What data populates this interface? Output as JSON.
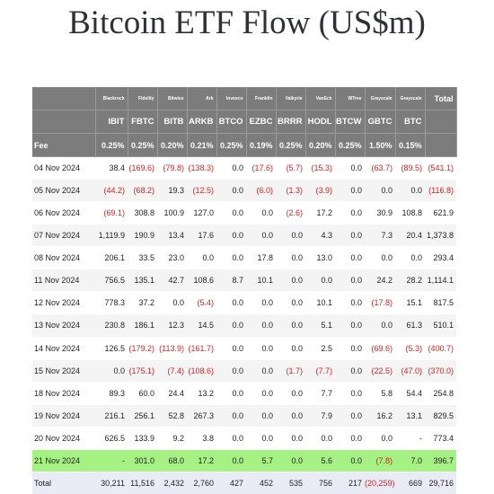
{
  "title": "Bitcoin ETF Flow (US$m)",
  "issuers": [
    "Blackrock",
    "Fidelity",
    "Bitwise",
    "Ark",
    "Invesco",
    "Franklin",
    "Valkyrie",
    "VanEck",
    "WTree",
    "Grayscale",
    "Grayscale"
  ],
  "total_header": "Total",
  "tickers": [
    "IBIT",
    "FBTC",
    "BITB",
    "ARKB",
    "BTCO",
    "EZBC",
    "BRRR",
    "HODL",
    "BTCW",
    "GBTC",
    "BTC"
  ],
  "fee_label": "Fee",
  "fees": [
    "0.25%",
    "0.25%",
    "0.20%",
    "0.21%",
    "0.25%",
    "0.19%",
    "0.25%",
    "0.20%",
    "0.25%",
    "1.50%",
    "0.15%",
    ""
  ],
  "rows": [
    {
      "date": "04 Nov 2024",
      "values": [
        "38.4",
        "(169.6)",
        "(79.8)",
        "(138.3)",
        "0.0",
        "(17.6)",
        "(5.7)",
        "(15.3)",
        "0.0",
        "(63.7)",
        "(89.5)",
        "(541.1)"
      ]
    },
    {
      "date": "05 Nov 2024",
      "values": [
        "(44.2)",
        "(68.2)",
        "19.3",
        "(12.5)",
        "0.0",
        "(6.0)",
        "(1.3)",
        "(3.9)",
        "0.0",
        "0.0",
        "0.0",
        "(116.8)"
      ]
    },
    {
      "date": "06 Nov 2024",
      "values": [
        "(69.1)",
        "308.8",
        "100.9",
        "127.0",
        "0.0",
        "0.0",
        "(2.6)",
        "17.2",
        "0.0",
        "30.9",
        "108.8",
        "621.9"
      ]
    },
    {
      "date": "07 Nov 2024",
      "values": [
        "1,119.9",
        "190.9",
        "13.4",
        "17.6",
        "0.0",
        "0.0",
        "0.0",
        "4.3",
        "0.0",
        "7.3",
        "20.4",
        "1,373.8"
      ]
    },
    {
      "date": "08 Nov 2024",
      "values": [
        "206.1",
        "33.5",
        "23.0",
        "0.0",
        "0.0",
        "17.8",
        "0.0",
        "13.0",
        "0.0",
        "0.0",
        "0.0",
        "293.4"
      ]
    },
    {
      "date": "11 Nov 2024",
      "values": [
        "756.5",
        "135.1",
        "42.7",
        "108.6",
        "8.7",
        "10.1",
        "0.0",
        "0.0",
        "0.0",
        "24.2",
        "28.2",
        "1,114.1"
      ]
    },
    {
      "date": "12 Nov 2024",
      "values": [
        "778.3",
        "37.2",
        "0.0",
        "(5.4)",
        "0.0",
        "0.0",
        "0.0",
        "10.1",
        "0.0",
        "(17.8)",
        "15.1",
        "817.5"
      ]
    },
    {
      "date": "13 Nov 2024",
      "values": [
        "230.8",
        "186.1",
        "12.3",
        "14.5",
        "0.0",
        "0.0",
        "0.0",
        "5.1",
        "0.0",
        "0.0",
        "61.3",
        "510.1"
      ]
    },
    {
      "date": "14 Nov 2024",
      "values": [
        "126.5",
        "(179.2)",
        "(113.9)",
        "(161.7)",
        "0.0",
        "0.0",
        "0.0",
        "2.5",
        "0.0",
        "(69.6)",
        "(5.3)",
        "(400.7)"
      ]
    },
    {
      "date": "15 Nov 2024",
      "values": [
        "0.0",
        "(175.1)",
        "(7.4)",
        "(108.6)",
        "0.0",
        "0.0",
        "(1.7)",
        "(7.7)",
        "0.0",
        "(22.5)",
        "(47.0)",
        "(370.0)"
      ]
    },
    {
      "date": "18 Nov 2024",
      "values": [
        "89.3",
        "60.0",
        "24.4",
        "13.2",
        "0.0",
        "0.0",
        "0.0",
        "7.7",
        "0.0",
        "5.8",
        "54.4",
        "254.8"
      ]
    },
    {
      "date": "19 Nov 2024",
      "values": [
        "216.1",
        "256.1",
        "52.8",
        "267.3",
        "0.0",
        "0.0",
        "0.0",
        "7.9",
        "0.0",
        "16.2",
        "13.1",
        "829.5"
      ]
    },
    {
      "date": "20 Nov 2024",
      "values": [
        "626.5",
        "133.9",
        "9.2",
        "3.8",
        "0.0",
        "0.0",
        "0.0",
        "0.0",
        "0.0",
        "0.0",
        "-",
        "773.4"
      ]
    },
    {
      "date": "21 Nov 2024",
      "highlight": true,
      "values": [
        "-",
        "301.0",
        "68.0",
        "17.2",
        "0.0",
        "5.7",
        "0.0",
        "5.6",
        "0.0",
        "(7.8)",
        "7.0",
        "396.7"
      ]
    }
  ],
  "total_row": {
    "label": "Total",
    "values": [
      "30,211",
      "11,516",
      "2,432",
      "2,760",
      "427",
      "452",
      "535",
      "756",
      "217",
      "(20,259)",
      "669",
      "29,716"
    ]
  },
  "colors": {
    "header_bg": "#7c7c7c",
    "negative": "#d42323",
    "highlight_row": "#a6f184",
    "total_row": "#e9ecf6"
  }
}
